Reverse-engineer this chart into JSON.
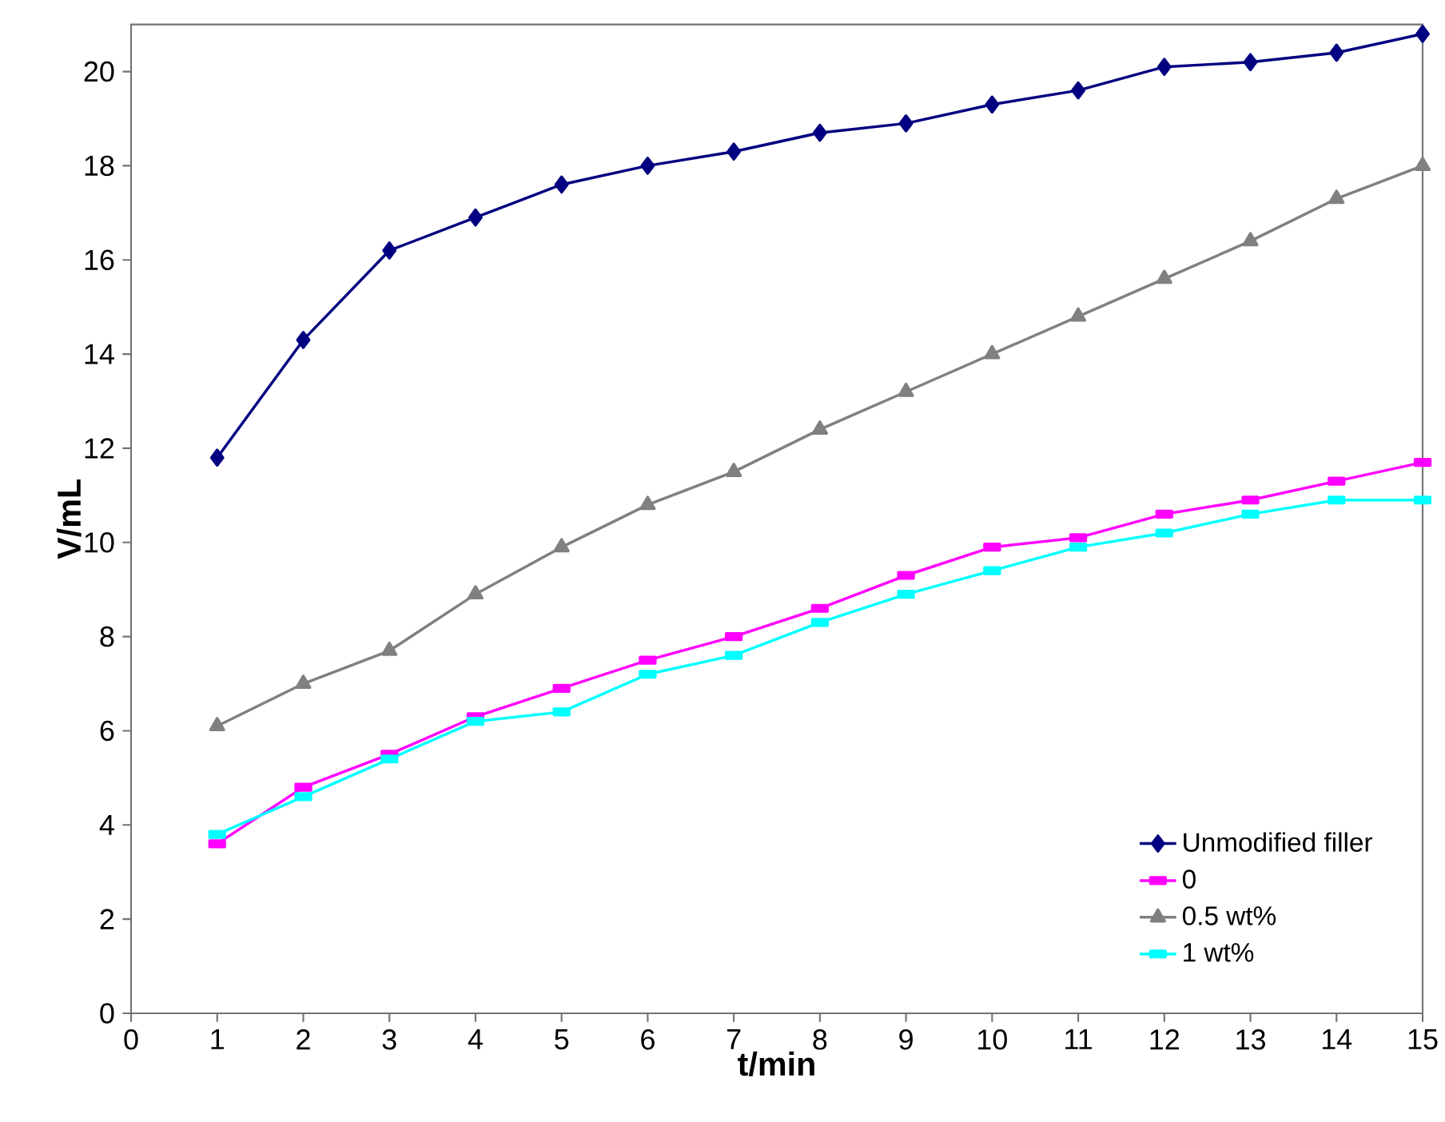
{
  "chart_data": {
    "type": "line",
    "xlabel": "t/min",
    "ylabel": "V/mL",
    "x": [
      1,
      2,
      3,
      4,
      5,
      6,
      7,
      8,
      9,
      10,
      11,
      12,
      13,
      14,
      15
    ],
    "series": [
      {
        "name": "Unmodified filler",
        "color": "#000080",
        "marker": "diamond",
        "values": [
          11.8,
          14.3,
          16.2,
          16.9,
          17.6,
          18.0,
          18.3,
          18.7,
          18.9,
          19.3,
          19.6,
          20.1,
          20.2,
          20.4,
          20.8
        ]
      },
      {
        "name": "0",
        "color": "#ff00ff",
        "marker": "square",
        "values": [
          3.6,
          4.8,
          5.5,
          6.3,
          6.9,
          7.5,
          8.0,
          8.6,
          9.3,
          9.9,
          10.1,
          10.6,
          10.9,
          11.3,
          11.7
        ]
      },
      {
        "name": "0.5 wt%",
        "color": "#808080",
        "marker": "triangle",
        "values": [
          6.1,
          7.0,
          7.7,
          8.9,
          9.9,
          10.8,
          11.5,
          12.4,
          13.2,
          14.0,
          14.8,
          15.6,
          16.4,
          17.3,
          18.0
        ]
      },
      {
        "name": "1 wt%",
        "color": "#00ffff",
        "marker": "square",
        "values": [
          3.8,
          4.6,
          5.4,
          6.2,
          6.4,
          7.2,
          7.6,
          8.3,
          8.9,
          9.4,
          9.9,
          10.2,
          10.6,
          10.9,
          10.9
        ]
      }
    ],
    "xlim": [
      0,
      15
    ],
    "ylim": [
      0,
      21
    ],
    "xticks": [
      0,
      1,
      2,
      3,
      4,
      5,
      6,
      7,
      8,
      9,
      10,
      11,
      12,
      13,
      14,
      15
    ],
    "yticks": [
      0,
      2,
      4,
      6,
      8,
      10,
      12,
      14,
      16,
      18,
      20
    ],
    "grid": false,
    "legend": "bottom right",
    "line_style": "solid"
  }
}
